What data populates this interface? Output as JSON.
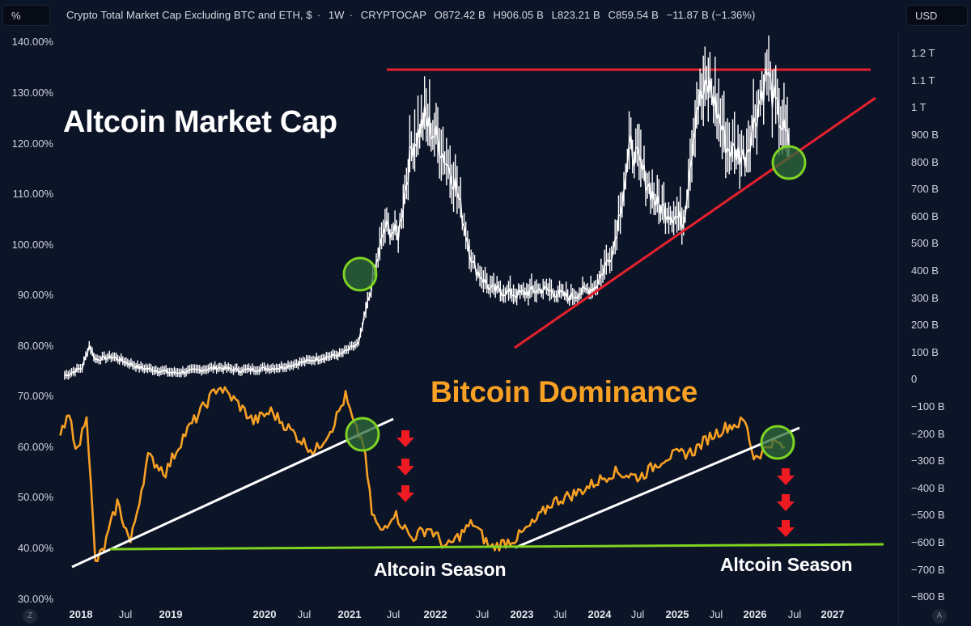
{
  "header": {
    "left_scale_button": "%",
    "right_scale_button": "USD",
    "legend": {
      "title": "Crypto Total Market Cap Excluding BTC and ETH, $",
      "interval": "1W",
      "source": "CRYPTOCAP",
      "open": "O872.42 B",
      "high": "H906.05 B",
      "low": "L823.21 B",
      "close": "C859.54 B",
      "change": "−11.87 B (−1.36%)"
    }
  },
  "left_axis": {
    "ticks": [
      "140.00%",
      "130.00%",
      "120.00%",
      "110.00%",
      "100.00%",
      "90.00%",
      "80.00%",
      "70.00%",
      "60.00%",
      "50.00%",
      "40.00%",
      "30.00%"
    ]
  },
  "right_axis": {
    "ticks": [
      "1.2 T",
      "1.1 T",
      "1 T",
      "900 B",
      "800 B",
      "700 B",
      "600 B",
      "500 B",
      "400 B",
      "300 B",
      "200 B",
      "100 B",
      "0",
      "−100 B",
      "−200 B",
      "−300 B",
      "−400 B",
      "−500 B",
      "−600 B",
      "−700 B",
      "−800 B"
    ]
  },
  "x_axis": {
    "ticks": [
      {
        "label": "2018",
        "year": true
      },
      {
        "label": "Jul",
        "year": false
      },
      {
        "label": "2019",
        "year": true
      },
      {
        "label": "2020",
        "year": true
      },
      {
        "label": "Jul",
        "year": false
      },
      {
        "label": "2021",
        "year": true
      },
      {
        "label": "Jul",
        "year": false
      },
      {
        "label": "2022",
        "year": true
      },
      {
        "label": "Jul",
        "year": false
      },
      {
        "label": "2023",
        "year": true
      },
      {
        "label": "Jul",
        "year": false
      },
      {
        "label": "2024",
        "year": true
      },
      {
        "label": "Jul",
        "year": false
      },
      {
        "label": "2025",
        "year": true
      },
      {
        "label": "Jul",
        "year": false
      },
      {
        "label": "2026",
        "year": true
      },
      {
        "label": "Jul",
        "year": false
      },
      {
        "label": "2027",
        "year": true
      }
    ],
    "zoom_button": "Z",
    "auto_button": "A"
  },
  "annotations": {
    "altcoin_title": "Altcoin Market Cap",
    "dominance_title": "Bitcoin Dominance",
    "season_1": "Altcoin Season",
    "season_2": "Altcoin Season"
  },
  "colors": {
    "background": "#0c1428",
    "altcap_line": "#ffffff",
    "dominance_line": "#f7a023",
    "resistance_line": "#e8202e",
    "support_line": "#7ed321",
    "circle_stroke": "#7ed321",
    "circle_fill": "#2f6b3a",
    "arrow": "#ef1b23"
  },
  "chart_data": [
    {
      "type": "line",
      "title": "Crypto Total Market Cap Excluding BTC and ETH (Altcoin Market Cap)",
      "interval": "1W",
      "ylabel": "USD",
      "axis": "right",
      "ylim_usd_billion": [
        -800,
        1200
      ],
      "x": [
        2017.75,
        2017.95,
        2018.03,
        2018.1,
        2018.3,
        2018.6,
        2019.0,
        2019.5,
        2019.75,
        2020.2,
        2020.6,
        2020.9,
        2021.1,
        2021.3,
        2021.4,
        2021.55,
        2021.7,
        2021.85,
        2022.0,
        2022.2,
        2022.4,
        2022.6,
        2022.9,
        2023.2,
        2023.5,
        2023.8,
        2024.0,
        2024.2,
        2024.5,
        2024.8,
        2024.95,
        2025.1,
        2025.3,
        2025.5,
        2025.75,
        2025.85,
        2026.0
      ],
      "values_billion": [
        10,
        40,
        120,
        70,
        80,
        40,
        20,
        40,
        30,
        40,
        70,
        90,
        130,
        420,
        560,
        530,
        850,
        960,
        880,
        720,
        420,
        330,
        310,
        330,
        300,
        340,
        480,
        860,
        640,
        580,
        1010,
        1080,
        850,
        820,
        1130,
        1000,
        860
      ],
      "annotations": {
        "resistance_level_billion": 1140,
        "ascending_support": "from ~2022.8 (≈100B) to ~2027 (≈1.03T)",
        "highlight_circles": [
          "2021 Q1 breakout (~430B)",
          "Late 2025 retest of support (~800B)"
        ]
      }
    },
    {
      "type": "line",
      "title": "Bitcoin Dominance",
      "axis": "left",
      "ylabel": "%",
      "ylim": [
        30,
        140
      ],
      "x": [
        2017.7,
        2017.8,
        2017.9,
        2018.0,
        2018.1,
        2018.2,
        2018.35,
        2018.5,
        2018.7,
        2018.9,
        2019.1,
        2019.3,
        2019.5,
        2019.7,
        2019.9,
        2020.1,
        2020.4,
        2020.6,
        2020.8,
        2020.95,
        2021.05,
        2021.15,
        2021.25,
        2021.35,
        2021.5,
        2021.7,
        2021.9,
        2022.1,
        2022.4,
        2022.6,
        2022.9,
        2023.1,
        2023.3,
        2023.6,
        2024.0,
        2024.3,
        2024.6,
        2024.9,
        2025.1,
        2025.3,
        2025.5,
        2025.6,
        2025.7,
        2025.8,
        2025.95
      ],
      "values": [
        62,
        66,
        59,
        67,
        37,
        40,
        49,
        41,
        58,
        55,
        62,
        67,
        72,
        69,
        65,
        67,
        62,
        59,
        64,
        70,
        64,
        61,
        47,
        43,
        47,
        42,
        44,
        40,
        45,
        40,
        42,
        45,
        49,
        51,
        55,
        54,
        58,
        59,
        62,
        64,
        65,
        58,
        59,
        61,
        60
      ],
      "annotations": {
        "support_level_percent": 40.2,
        "rising_trendlines": [
          "2018.1 (37%) to 2021.6 (64%)",
          "2023.1 (40%) to 2026.0 (63%)"
        ],
        "highlight_circles": [
          "2021 trendline break (~62%)",
          "Late 2025 trendline break (~60%)"
        ],
        "down_arrows": [
          "after 2021 break",
          "after 2025 break"
        ],
        "labels": [
          "Altcoin Season (2022)",
          "Altcoin Season (2026)"
        ]
      }
    }
  ]
}
